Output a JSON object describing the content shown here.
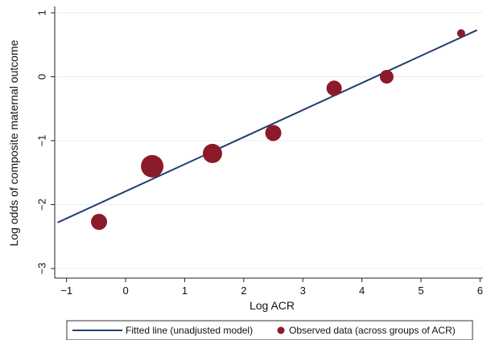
{
  "chart_data": {
    "type": "scatter",
    "xlabel": "Log ACR",
    "ylabel": "Log odds of composite maternal outcome",
    "xlim": [
      -1.2,
      6.05
    ],
    "ylim": [
      -3.15,
      1.1
    ],
    "xticks": [
      -1,
      0,
      1,
      2,
      3,
      4,
      5,
      6
    ],
    "yticks": [
      1,
      0,
      -1,
      -2,
      -3
    ],
    "xtick_labels": [
      "−1",
      "0",
      "1",
      "2",
      "3",
      "4",
      "5",
      "6"
    ],
    "ytick_labels": [
      "1",
      "0",
      "−1",
      "−2",
      "−3"
    ],
    "grid": "horizontal",
    "series": [
      {
        "name": "Fitted line (unadjusted model)",
        "kind": "line",
        "color": "#1f3f6e",
        "x": [
          -1.15,
          5.95
        ],
        "y": [
          -2.28,
          0.73
        ]
      },
      {
        "name": "Observed data (across groups of ACR)",
        "kind": "scatter",
        "color": "#8b1a2a",
        "x": [
          -0.45,
          0.45,
          1.47,
          2.5,
          3.53,
          4.42,
          5.68
        ],
        "y": [
          -2.27,
          -1.4,
          -1.2,
          -0.88,
          -0.18,
          0.0,
          0.68
        ],
        "size": [
          10,
          14,
          12,
          10,
          9.5,
          8.5,
          5
        ]
      }
    ],
    "legend": {
      "position": "bottom",
      "entries": [
        "Fitted line (unadjusted model)",
        "Observed data (across groups of ACR)"
      ]
    }
  }
}
